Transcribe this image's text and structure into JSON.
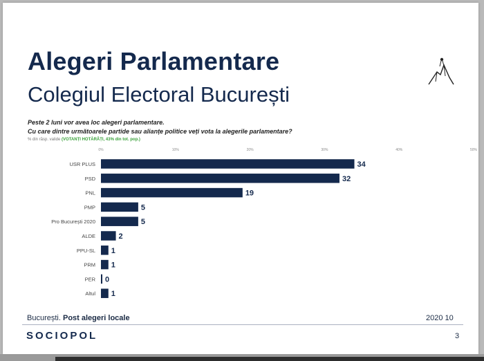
{
  "header": {
    "title": "Alegeri Parlamentare",
    "subtitle": "Colegiul Electoral București"
  },
  "question": {
    "line1": "Peste 2 luni vor avea loc alegeri parlamentare.",
    "line2": "Cu care dintre următoarele partide sau alianțe politice veți vota la alegerile parlamentare?"
  },
  "note": {
    "prefix": "% din răsp. valide",
    "highlight": "(VOTANȚI HOTĂRÂȚI, 43% din tot. pop.)"
  },
  "chart_data": {
    "type": "bar",
    "orientation": "horizontal",
    "categories": [
      "USR PLUS",
      "PSD",
      "PNL",
      "PMP",
      "Pro București 2020",
      "ALDE",
      "PPU-SL",
      "PRM",
      "PER",
      "Altul"
    ],
    "values": [
      34,
      32,
      19,
      5,
      5,
      2,
      1,
      1,
      0,
      1
    ],
    "x_ticks": [
      "0%",
      "10%",
      "20%",
      "30%",
      "40%",
      "50%"
    ],
    "xlim": [
      0,
      50
    ],
    "bar_color": "#14294d",
    "grid": false
  },
  "footer": {
    "location": "București.",
    "context": "Post alegeri locale",
    "date": "2020 10",
    "brand": "SOCIOPOL",
    "page": "3"
  }
}
